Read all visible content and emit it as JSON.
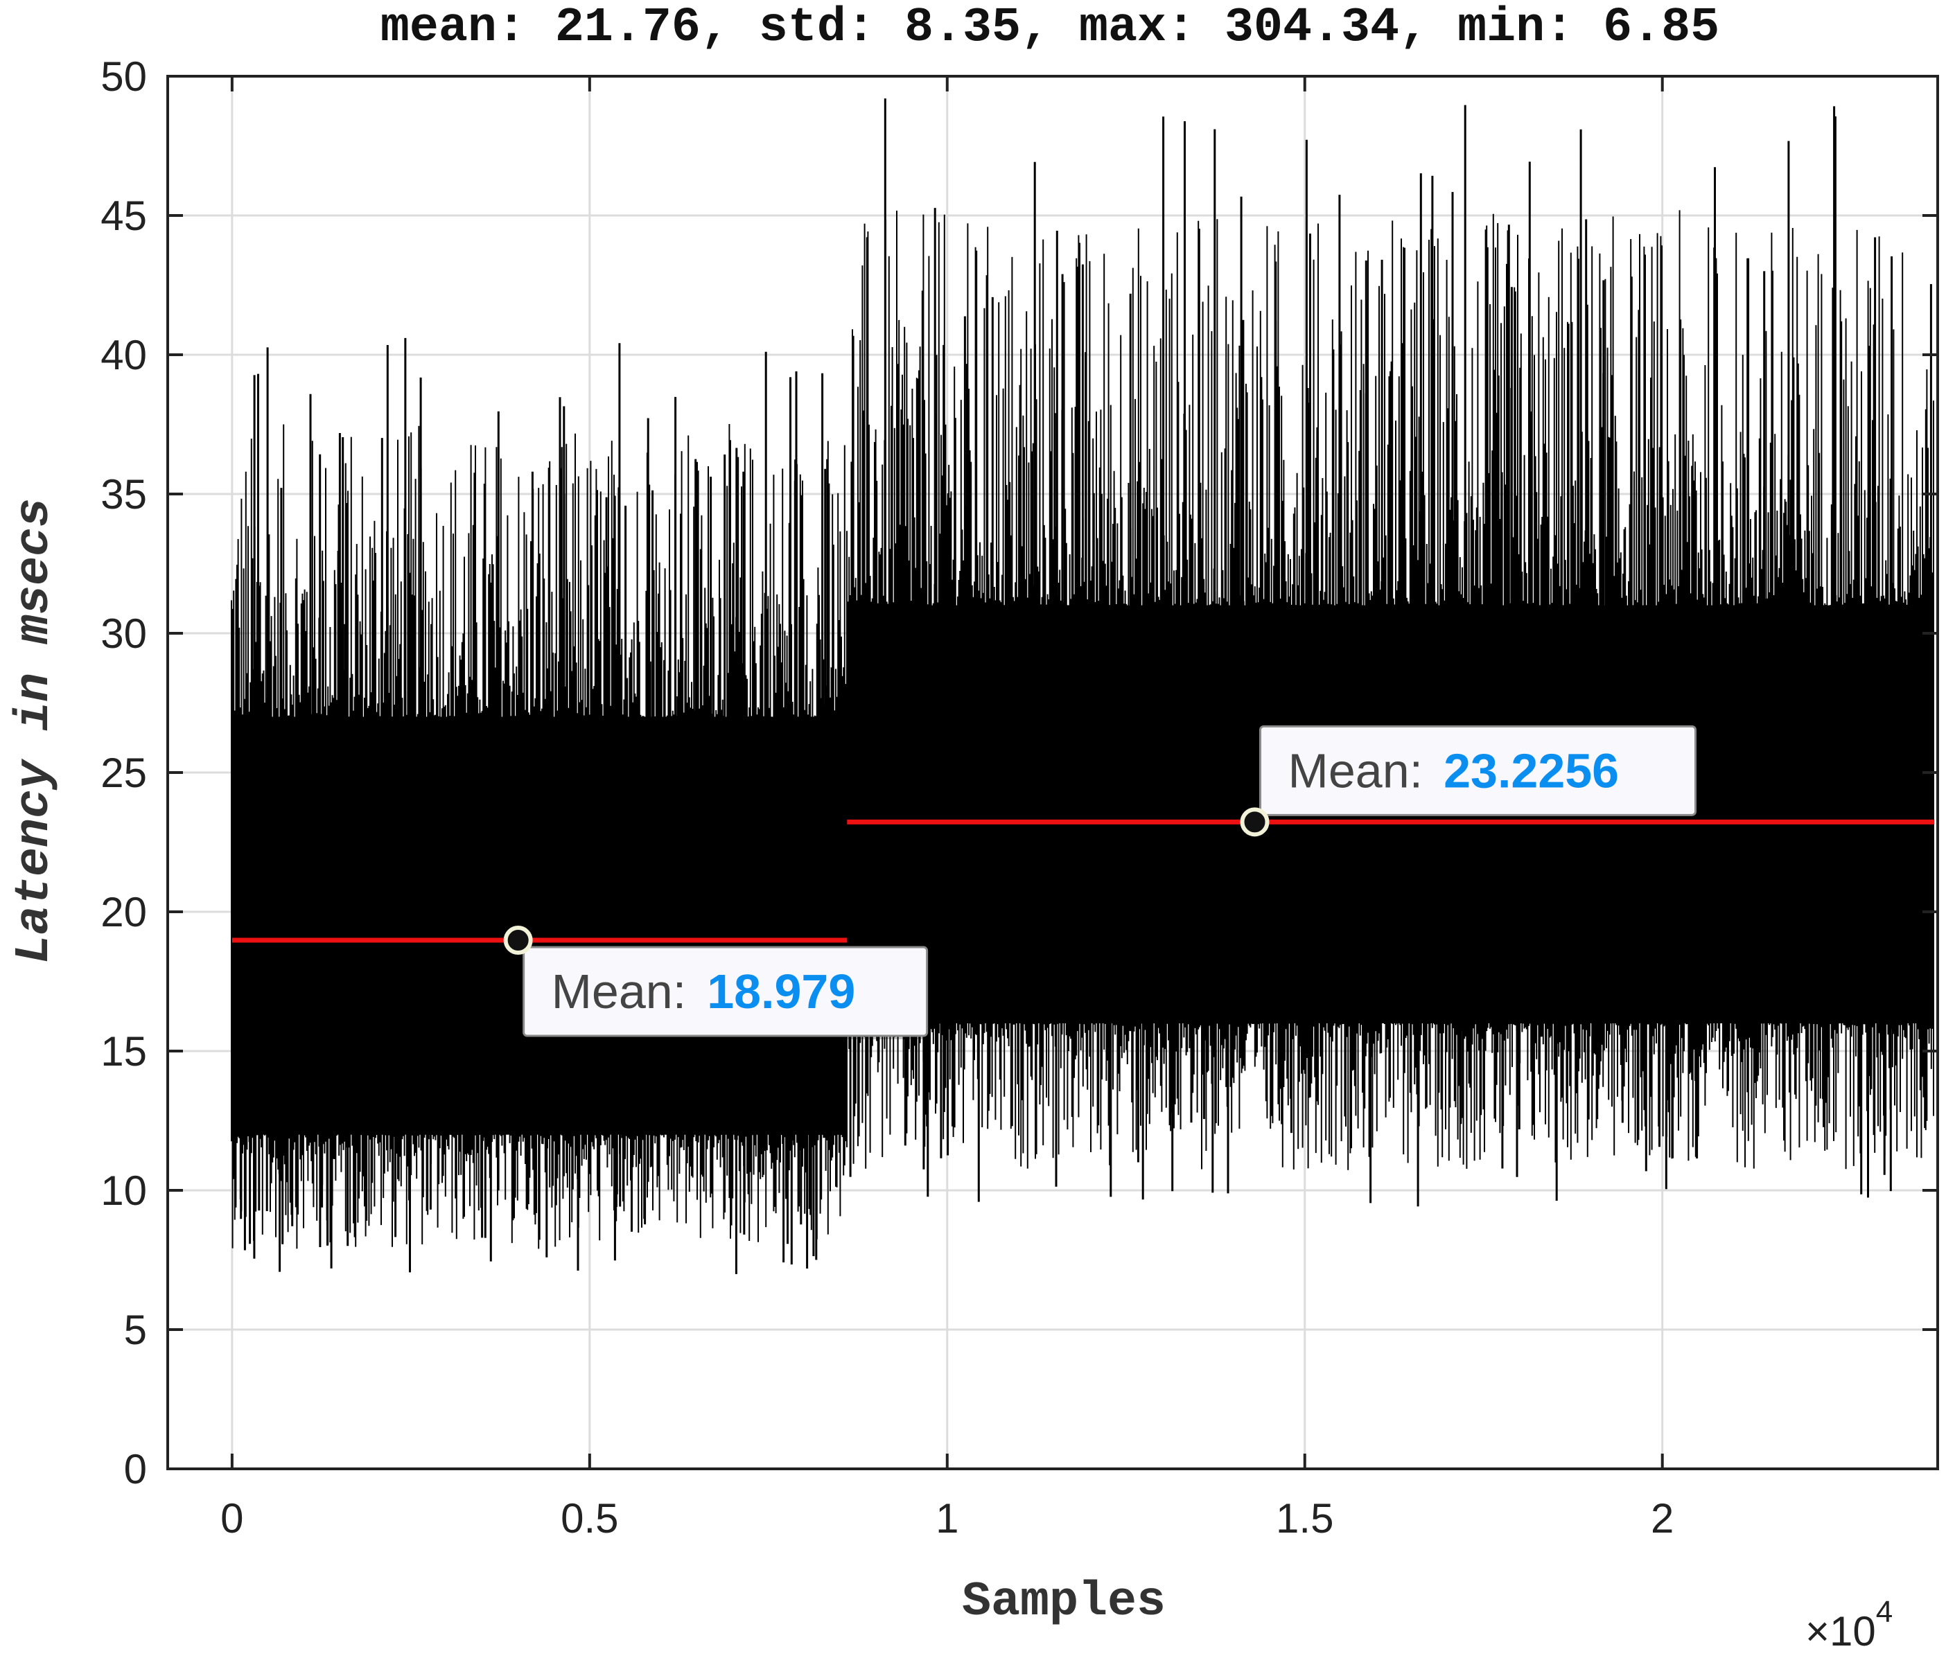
{
  "chart_data": {
    "type": "line",
    "title": "mean: 21.76, std: 8.35, max: 304.34, min: 6.85",
    "xlabel": "Samples",
    "ylabel": "Latency in msecs",
    "x_multiplier": "×10",
    "x_multiplier_exp": "4",
    "xlim": [
      -900,
      23850
    ],
    "ylim": [
      0,
      50
    ],
    "xticks": [
      0,
      5000,
      10000,
      15000,
      20000
    ],
    "xtick_labels": [
      "0",
      "0.5",
      "1",
      "1.5",
      "2"
    ],
    "yticks": [
      0,
      5,
      10,
      15,
      20,
      25,
      30,
      35,
      40,
      45,
      50
    ],
    "ytick_labels": [
      "0",
      "5",
      "10",
      "15",
      "20",
      "25",
      "30",
      "35",
      "40",
      "45",
      "50"
    ],
    "grid": true,
    "series": [
      {
        "color": "#000000",
        "segments": [
          {
            "x_start": 0,
            "x_end": 8600,
            "mean": 18.979,
            "core_low": 12,
            "core_high": 27,
            "spike_max": 40.6,
            "spike_min": 6.85
          },
          {
            "x_start": 8600,
            "x_end": 23800,
            "mean": 23.2256,
            "core_low": 16,
            "core_high": 31,
            "spike_max": 49.2,
            "spike_min": 9.4
          }
        ]
      }
    ],
    "mean_lines": [
      {
        "x_start": 0,
        "x_end": 8600,
        "y": 18.979,
        "color": "#ee1111"
      },
      {
        "x_start": 8600,
        "x_end": 23800,
        "y": 23.2256,
        "color": "#ee1111"
      }
    ],
    "datatips": [
      {
        "label": "Mean:",
        "value": "18.979",
        "x": 4000,
        "y": 18.979,
        "placement": "below-right"
      },
      {
        "label": "Mean:",
        "value": "23.2256",
        "x": 14300,
        "y": 23.2256,
        "placement": "above-right"
      }
    ],
    "value_color": "#0a8ef0"
  }
}
